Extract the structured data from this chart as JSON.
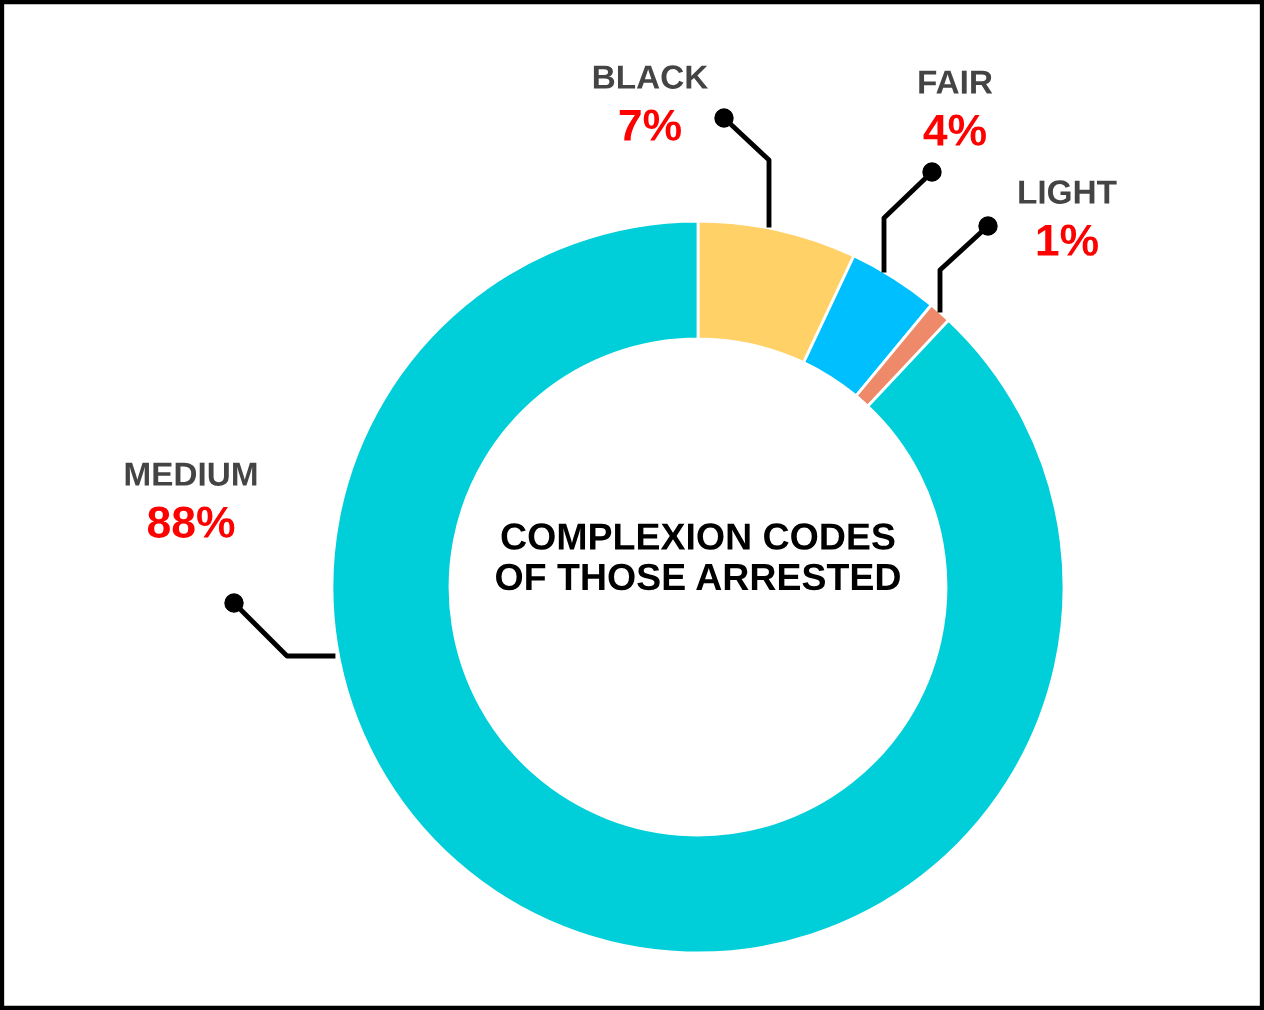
{
  "chart_data": {
    "type": "donut",
    "title": "COMPLEXION CODES\nOF THOSE ARRESTED",
    "categories": [
      "BLACK",
      "FAIR",
      "LIGHT",
      "MEDIUM"
    ],
    "values": [
      7,
      4,
      1,
      88
    ],
    "colors": [
      "#ffd166",
      "#00bfff",
      "#ee8a6a",
      "#00ced9"
    ],
    "value_labels": [
      "7%",
      "4%",
      "1%",
      "88%"
    ]
  }
}
